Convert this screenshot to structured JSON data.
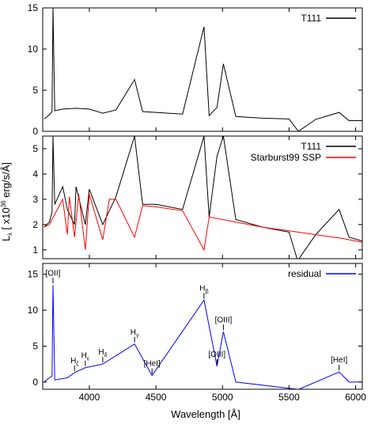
{
  "figure": {
    "ylabel_parts": {
      "main": "L",
      "sub": "λ",
      "bracket": " [ x10",
      "exp": "36",
      "unit": " erg/s/Å]"
    },
    "xlabel": "Wavelength [Å]",
    "xlim": [
      3650,
      6050
    ],
    "xticks": [
      4000,
      4500,
      5000,
      5500,
      6000
    ],
    "xtick_labels": [
      "4000",
      "4500",
      "5000",
      "5500",
      "6000"
    ]
  },
  "chart_data": [
    {
      "type": "line",
      "panel": "top",
      "ylim": [
        0,
        15
      ],
      "yticks": [
        0,
        5,
        10,
        15
      ],
      "ytick_labels": [
        "0",
        "5",
        "10",
        "15"
      ],
      "legend_position": "top-right",
      "series": [
        {
          "name": "T111",
          "color": "#000000",
          "x": [
            3660,
            3700,
            3720,
            3727,
            3740,
            3800,
            3900,
            4000,
            4101,
            4200,
            4340,
            4400,
            4500,
            4700,
            4861,
            4900,
            4959,
            5007,
            5100,
            5300,
            5500,
            5570,
            5700,
            5876,
            5950,
            6050
          ],
          "y": [
            1.5,
            2.0,
            2.4,
            15.0,
            2.5,
            2.7,
            2.8,
            2.7,
            2.2,
            2.6,
            6.3,
            2.4,
            2.3,
            2.1,
            12.7,
            1.9,
            2.9,
            8.2,
            1.8,
            1.6,
            1.5,
            0.0,
            1.45,
            2.3,
            1.3,
            1.3
          ]
        }
      ]
    },
    {
      "type": "line",
      "panel": "middle",
      "ylim": [
        0.65,
        5.5
      ],
      "yticks": [
        1,
        2,
        3,
        4,
        5
      ],
      "ytick_labels": [
        "1",
        "2",
        "3",
        "4",
        "5"
      ],
      "legend_position": "top-right",
      "series": [
        {
          "name": "T111",
          "color": "#000000",
          "x": [
            3660,
            3700,
            3720,
            3727,
            3740,
            3800,
            3835,
            3889,
            3900,
            3970,
            4000,
            4101,
            4200,
            4340,
            4400,
            4500,
            4700,
            4861,
            4900,
            4959,
            5007,
            5100,
            5300,
            5500,
            5560,
            5575,
            5700,
            5876,
            5950,
            6050
          ],
          "y": [
            1.9,
            2.1,
            2.5,
            5.5,
            2.8,
            3.5,
            2.6,
            2.0,
            3.5,
            2.0,
            3.4,
            2.0,
            3.1,
            5.5,
            2.8,
            2.8,
            2.6,
            5.5,
            2.3,
            4.7,
            5.5,
            2.2,
            1.9,
            1.7,
            0.65,
            0.65,
            1.6,
            2.6,
            1.5,
            1.35
          ]
        },
        {
          "name": "Starburst99 SSP",
          "color": "#ff0000",
          "x": [
            3660,
            3700,
            3750,
            3800,
            3835,
            3850,
            3889,
            3920,
            3970,
            4000,
            4101,
            4150,
            4200,
            4340,
            4400,
            4500,
            4700,
            4861,
            4900,
            5100,
            5300,
            5500,
            5700,
            5900,
            6050
          ],
          "y": [
            1.9,
            2.0,
            2.5,
            3.0,
            1.6,
            3.1,
            1.5,
            3.2,
            1.0,
            3.2,
            1.4,
            3.0,
            3.0,
            1.5,
            2.75,
            2.7,
            2.55,
            1.0,
            2.3,
            2.1,
            1.9,
            1.75,
            1.6,
            1.45,
            1.3
          ]
        }
      ]
    },
    {
      "type": "line",
      "panel": "bottom",
      "ylim": [
        -1,
        16.5
      ],
      "yticks": [
        0,
        5,
        10,
        15
      ],
      "ytick_labels": [
        "0",
        "5",
        "10",
        "15"
      ],
      "legend_position": "top-right",
      "series": [
        {
          "name": "residual",
          "color": "#0000ff",
          "x": [
            3660,
            3700,
            3720,
            3727,
            3740,
            3835,
            3889,
            3970,
            4101,
            4340,
            4471,
            4861,
            4959,
            5007,
            5100,
            5560,
            5575,
            5876,
            5950,
            6050
          ],
          "y": [
            0.0,
            0.6,
            0.8,
            13.5,
            0.3,
            0.6,
            1.3,
            2.0,
            2.5,
            5.3,
            0.9,
            11.4,
            2.2,
            7.0,
            0.0,
            -1.0,
            -1.0,
            1.4,
            0.0,
            0.0
          ]
        }
      ],
      "annotations": [
        {
          "text": "[OII]",
          "x": 3727
        },
        {
          "text": "H",
          "sub": "ζ",
          "x": 3889
        },
        {
          "text": "H",
          "sub": "ε",
          "x": 3970
        },
        {
          "text": "H",
          "sub": "δ",
          "x": 4101
        },
        {
          "text": "H",
          "sub": "γ",
          "x": 4340
        },
        {
          "text": "[HeI]",
          "x": 4471
        },
        {
          "text": "H",
          "sub": "β",
          "x": 4861
        },
        {
          "text": "[OIII]",
          "x": 4959
        },
        {
          "text": "[OIII]",
          "x": 5007
        },
        {
          "text": "[HeI]",
          "x": 5876
        }
      ]
    }
  ]
}
